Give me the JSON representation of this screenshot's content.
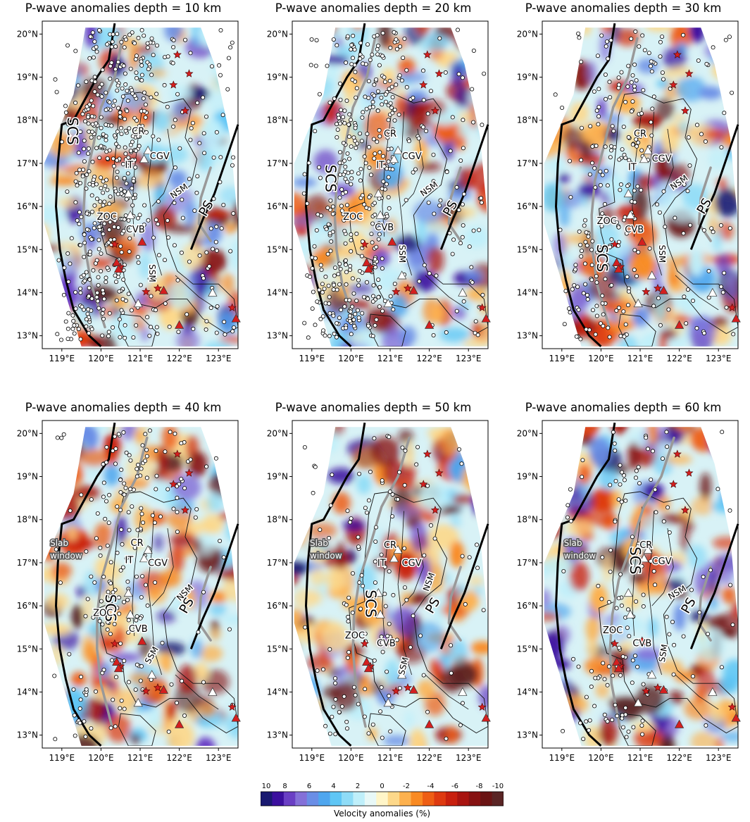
{
  "figure": {
    "panels": [
      {
        "title": "P-wave anomalies depth = 10 km",
        "depth_km": 10,
        "labels": [
          {
            "text": "SCS",
            "lon": 119.25,
            "lat": 17.75,
            "rot": 90,
            "size": 20,
            "halo": "white",
            "color": "#000"
          },
          {
            "text": "CR",
            "lon": 120.95,
            "lat": 17.73,
            "size": 13,
            "halo": "white",
            "color": "#000"
          },
          {
            "text": "CGV",
            "lon": 121.5,
            "lat": 17.15,
            "size": 13,
            "halo": "white",
            "color": "#000"
          },
          {
            "text": "IT",
            "lon": 120.72,
            "lat": 16.95,
            "size": 13,
            "halo": "white",
            "color": "#000"
          },
          {
            "text": "ZOC",
            "lon": 120.15,
            "lat": 15.75,
            "size": 13,
            "halo": "white",
            "color": "#000"
          },
          {
            "text": "CVB",
            "lon": 120.88,
            "lat": 15.45,
            "size": 13,
            "halo": "white",
            "color": "#000"
          },
          {
            "text": "NSM",
            "lon": 122.0,
            "lat": 16.35,
            "rot": -35,
            "size": 12,
            "halo": "white",
            "color": "#000"
          },
          {
            "text": "SSM",
            "lon": 121.3,
            "lat": 14.45,
            "rot": 90,
            "size": 12,
            "halo": "white",
            "color": "#000"
          },
          {
            "text": "PS",
            "lon": 122.7,
            "lat": 15.95,
            "rot": -60,
            "size": 18,
            "halo": "white",
            "color": "#000"
          }
        ]
      },
      {
        "title": "P-wave anomalies depth = 20 km",
        "depth_km": 20,
        "labels": [
          {
            "text": "SCS",
            "lon": 119.45,
            "lat": 16.65,
            "rot": 90,
            "size": 20,
            "halo": "white",
            "color": "#000"
          },
          {
            "text": "CR",
            "lon": 121.0,
            "lat": 17.68,
            "size": 13,
            "halo": "white",
            "color": "#000"
          },
          {
            "text": "CGV",
            "lon": 121.55,
            "lat": 17.15,
            "size": 13,
            "halo": "white",
            "color": "#000"
          },
          {
            "text": "IT",
            "lon": 120.75,
            "lat": 16.95,
            "size": 13,
            "halo": "white",
            "color": "#000"
          },
          {
            "text": "ZOC",
            "lon": 120.05,
            "lat": 15.75,
            "size": 13,
            "halo": "white",
            "color": "#000"
          },
          {
            "text": "CVB",
            "lon": 120.85,
            "lat": 15.5,
            "size": 13,
            "halo": "white",
            "color": "#000"
          },
          {
            "text": "NSM",
            "lon": 122.0,
            "lat": 16.4,
            "rot": -35,
            "size": 12,
            "halo": "white",
            "color": "#000"
          },
          {
            "text": "SSM",
            "lon": 121.3,
            "lat": 14.9,
            "rot": 90,
            "size": 12,
            "halo": "white",
            "color": "#000"
          },
          {
            "text": "PS",
            "lon": 122.55,
            "lat": 15.95,
            "rot": -60,
            "size": 18,
            "halo": "white",
            "color": "#000"
          }
        ]
      },
      {
        "title": "P-wave anomalies depth = 30 km",
        "depth_km": 30,
        "labels": [
          {
            "text": "SCS",
            "lon": 120.0,
            "lat": 14.8,
            "rot": 90,
            "size": 20,
            "halo": "white",
            "color": "#000"
          },
          {
            "text": "CR",
            "lon": 121.0,
            "lat": 17.68,
            "size": 13,
            "halo": "white",
            "color": "#000"
          },
          {
            "text": "CGV",
            "lon": 121.55,
            "lat": 17.1,
            "size": 13,
            "halo": "white",
            "color": "#000"
          },
          {
            "text": "IT",
            "lon": 120.8,
            "lat": 16.9,
            "size": 13,
            "halo": "white",
            "color": "#000"
          },
          {
            "text": "ZOC",
            "lon": 120.15,
            "lat": 15.65,
            "size": 13,
            "halo": "white",
            "color": "#000"
          },
          {
            "text": "CVB",
            "lon": 120.85,
            "lat": 15.45,
            "size": 13,
            "halo": "white",
            "color": "#000"
          },
          {
            "text": "NSM",
            "lon": 122.0,
            "lat": 16.55,
            "rot": -35,
            "size": 12,
            "halo": "white",
            "color": "#000"
          },
          {
            "text": "SSM",
            "lon": 121.55,
            "lat": 14.9,
            "rot": 90,
            "size": 12,
            "halo": "white",
            "color": "#000"
          },
          {
            "text": "PS",
            "lon": 122.65,
            "lat": 16.0,
            "rot": -60,
            "size": 18,
            "halo": "white",
            "color": "#000"
          }
        ]
      },
      {
        "title": "P-wave anomalies depth = 40 km",
        "depth_km": 40,
        "labels": [
          {
            "text": "Slab",
            "lon": 118.7,
            "lat": 17.45,
            "size": 12,
            "halo": "#555",
            "color": "#fff",
            "anchor": "start"
          },
          {
            "text": "window",
            "lon": 118.7,
            "lat": 17.15,
            "size": 12,
            "halo": "#555",
            "color": "#fff",
            "anchor": "start"
          },
          {
            "text": "SCS",
            "lon": 120.22,
            "lat": 15.95,
            "rot": 90,
            "size": 20,
            "halo": "white",
            "color": "#000"
          },
          {
            "text": "CR",
            "lon": 120.92,
            "lat": 17.45,
            "size": 13,
            "halo": "white",
            "color": "#000"
          },
          {
            "text": "CGV",
            "lon": 121.45,
            "lat": 16.98,
            "size": 13,
            "halo": "white",
            "color": "#000"
          },
          {
            "text": "IT",
            "lon": 120.72,
            "lat": 17.05,
            "size": 13,
            "halo": "white",
            "color": "#000"
          },
          {
            "text": "ZOC",
            "lon": 120.05,
            "lat": 15.82,
            "size": 13,
            "halo": "white",
            "color": "#000"
          },
          {
            "text": "CVB",
            "lon": 120.95,
            "lat": 15.45,
            "size": 13,
            "halo": "white",
            "color": "#000"
          },
          {
            "text": "NSM",
            "lon": 122.15,
            "lat": 16.3,
            "rot": -45,
            "size": 12,
            "halo": "white",
            "color": "#000"
          },
          {
            "text": "PS",
            "lon": 122.2,
            "lat": 16.0,
            "rot": -60,
            "size": 18,
            "halo": "white",
            "color": "#000"
          },
          {
            "text": "SSM",
            "lon": 121.3,
            "lat": 14.85,
            "rot": -60,
            "size": 12,
            "halo": "white",
            "color": "#000"
          }
        ]
      },
      {
        "title": "P-wave anomalies depth = 50 km",
        "depth_km": 50,
        "labels": [
          {
            "text": "Slab",
            "lon": 118.95,
            "lat": 17.45,
            "size": 12,
            "halo": "#555",
            "color": "#fff",
            "anchor": "start"
          },
          {
            "text": "window",
            "lon": 118.95,
            "lat": 17.15,
            "size": 12,
            "halo": "#555",
            "color": "#fff",
            "anchor": "start"
          },
          {
            "text": "SCS",
            "lon": 120.48,
            "lat": 16.05,
            "rot": 90,
            "size": 20,
            "halo": "white",
            "color": "#000"
          },
          {
            "text": "CR",
            "lon": 121.0,
            "lat": 17.4,
            "size": 13,
            "halo": "white",
            "color": "#000"
          },
          {
            "text": "CGV",
            "lon": 121.55,
            "lat": 16.98,
            "size": 13,
            "halo": "white",
            "color": "#000"
          },
          {
            "text": "IT",
            "lon": 120.78,
            "lat": 16.98,
            "size": 13,
            "halo": "white",
            "color": "#000"
          },
          {
            "text": "ZOC",
            "lon": 120.1,
            "lat": 15.3,
            "size": 13,
            "halo": "white",
            "color": "#000"
          },
          {
            "text": "CVB",
            "lon": 120.9,
            "lat": 15.12,
            "size": 13,
            "halo": "white",
            "color": "#000"
          },
          {
            "text": "NSM",
            "lon": 122.0,
            "lat": 16.55,
            "rot": -70,
            "size": 12,
            "halo": "white",
            "color": "#000"
          },
          {
            "text": "PS",
            "lon": 122.1,
            "lat": 16.0,
            "rot": -60,
            "size": 18,
            "halo": "white",
            "color": "#000"
          },
          {
            "text": "SSM",
            "lon": 121.35,
            "lat": 14.6,
            "rot": -75,
            "size": 12,
            "halo": "white",
            "color": "#000"
          }
        ]
      },
      {
        "title": "P-wave anomalies depth = 60 km",
        "depth_km": 60,
        "labels": [
          {
            "text": "Slab",
            "lon": 119.05,
            "lat": 17.45,
            "size": 12,
            "halo": "#555",
            "color": "#fff",
            "anchor": "start"
          },
          {
            "text": "window",
            "lon": 119.05,
            "lat": 17.15,
            "size": 12,
            "halo": "#555",
            "color": "#fff",
            "anchor": "start"
          },
          {
            "text": "SCS",
            "lon": 120.85,
            "lat": 17.05,
            "rot": 90,
            "size": 20,
            "halo": "white",
            "color": "#000"
          },
          {
            "text": "CR",
            "lon": 121.15,
            "lat": 17.4,
            "size": 13,
            "halo": "white",
            "color": "#000"
          },
          {
            "text": "CGV",
            "lon": 121.55,
            "lat": 17.02,
            "size": 13,
            "halo": "white",
            "color": "#000"
          },
          {
            "text": "ZOC",
            "lon": 120.3,
            "lat": 15.42,
            "size": 13,
            "halo": "white",
            "color": "#000"
          },
          {
            "text": "CVB",
            "lon": 121.05,
            "lat": 15.12,
            "size": 13,
            "halo": "white",
            "color": "#000"
          },
          {
            "text": "NSM",
            "lon": 121.95,
            "lat": 16.3,
            "rot": -30,
            "size": 12,
            "halo": "white",
            "color": "#000"
          },
          {
            "text": "PS",
            "lon": 122.25,
            "lat": 16.0,
            "rot": -60,
            "size": 18,
            "halo": "white",
            "color": "#000"
          },
          {
            "text": "SSM",
            "lon": 121.6,
            "lat": 14.9,
            "rot": -80,
            "size": 12,
            "halo": "white",
            "color": "#000"
          }
        ]
      }
    ],
    "axes": {
      "lon_ticks": [
        119,
        120,
        121,
        122,
        123
      ],
      "lon_labels": [
        "119°E",
        "120°E",
        "121°E",
        "122°E",
        "123°E"
      ],
      "lat_ticks": [
        13,
        14,
        15,
        16,
        17,
        18,
        19,
        20
      ],
      "lat_labels": [
        "13°N",
        "14°N",
        "15°N",
        "16°N",
        "17°N",
        "18°N",
        "19°N",
        "20°N"
      ]
    },
    "colorbar": {
      "label": "Velocity anomalies (%)",
      "tick_labels": [
        "10",
        "8",
        "6",
        "4",
        "2",
        "0",
        "-2",
        "-4",
        "-6",
        "-8",
        "-10"
      ],
      "colors": [
        "#191970",
        "#3b0f9e",
        "#6a3fc4",
        "#8470d8",
        "#6a8ee6",
        "#4fa6ee",
        "#5fc6f5",
        "#8fdcf7",
        "#bfeffa",
        "#e8f8f7",
        "#fff5c8",
        "#fdd88a",
        "#fdb14e",
        "#f98a22",
        "#ee5e14",
        "#de3a10",
        "#c8200e",
        "#a81410",
        "#861212",
        "#6a1414",
        "#5a2525"
      ]
    },
    "symbols": {
      "stars": [
        [
          121.95,
          19.52
        ],
        [
          122.25,
          19.08
        ],
        [
          121.85,
          18.82
        ],
        [
          122.15,
          18.22
        ],
        [
          120.35,
          15.12
        ],
        [
          121.15,
          14.02
        ],
        [
          121.45,
          14.1
        ],
        [
          120.5,
          14.6
        ],
        [
          123.35,
          13.65
        ]
      ],
      "red_triangles": [
        [
          121.05,
          15.18
        ],
        [
          120.4,
          14.7
        ],
        [
          121.6,
          14.05
        ],
        [
          122.0,
          13.25
        ],
        [
          123.45,
          13.4
        ],
        [
          120.45,
          14.55
        ]
      ],
      "white_triangles": [
        [
          121.1,
          17.1
        ],
        [
          121.2,
          17.3
        ],
        [
          120.7,
          16.3
        ],
        [
          120.75,
          15.8
        ],
        [
          121.3,
          14.4
        ],
        [
          120.95,
          13.75
        ],
        [
          122.85,
          14.0
        ]
      ]
    }
  }
}
